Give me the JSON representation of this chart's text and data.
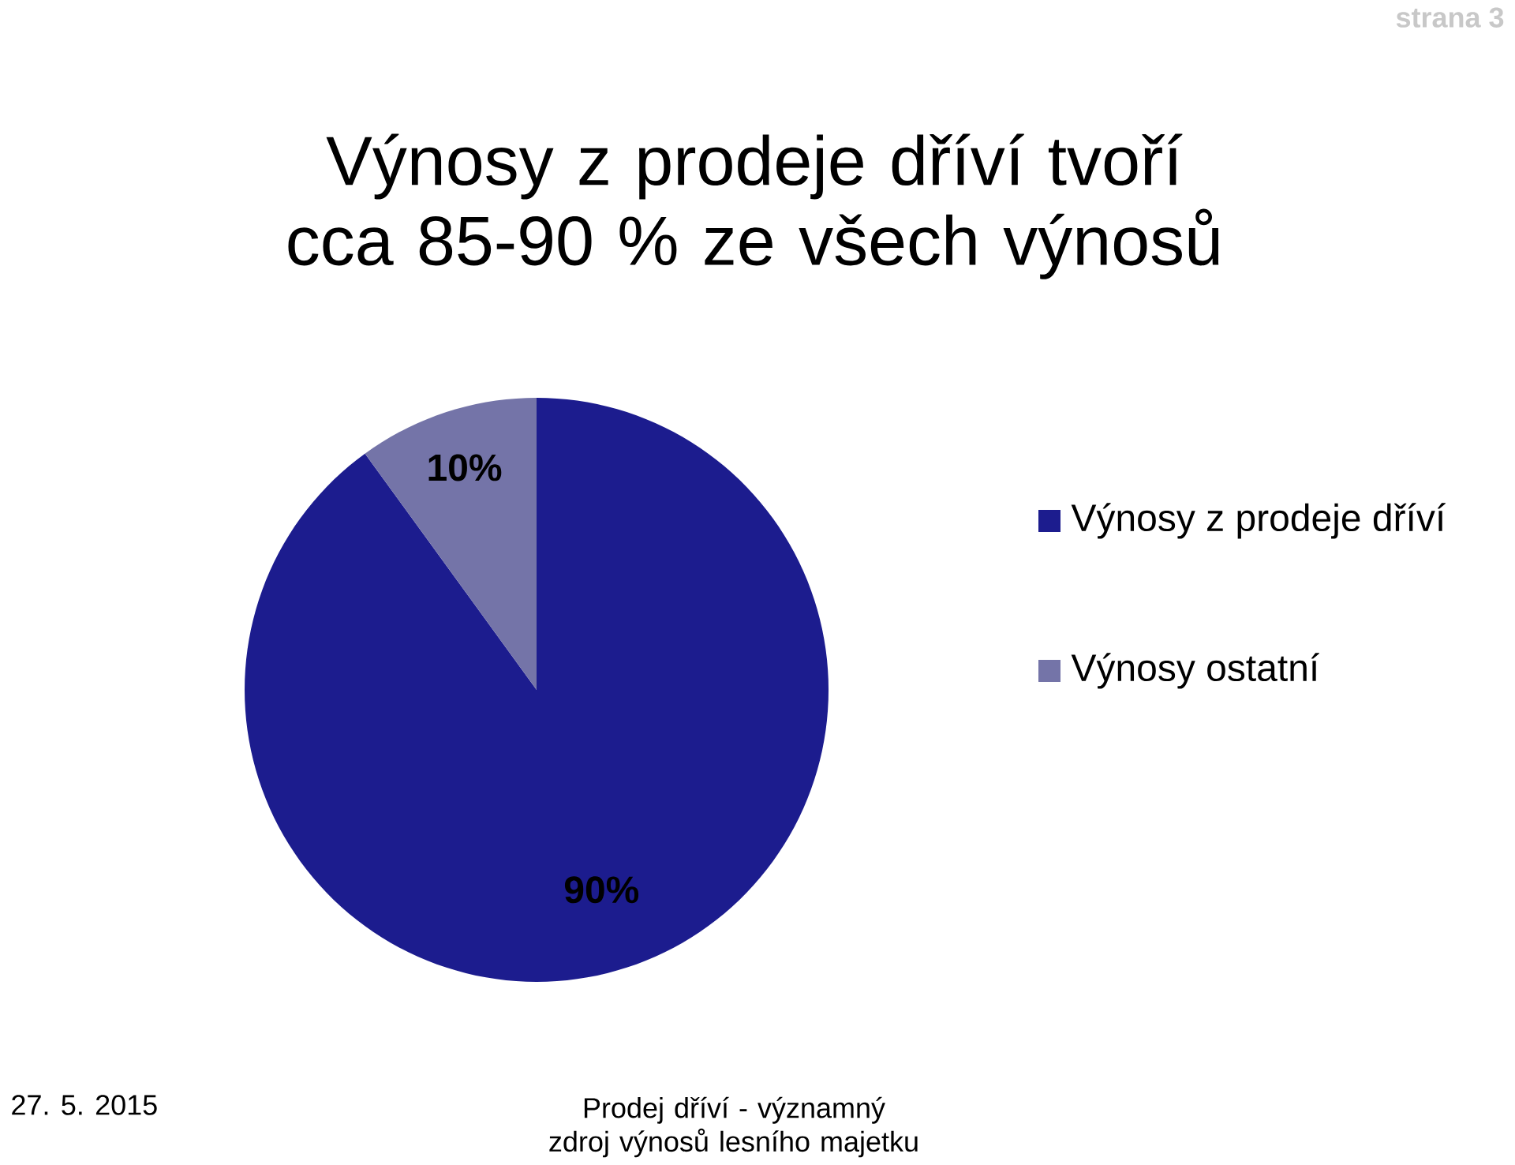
{
  "chart_data": {
    "type": "pie",
    "title": "Výnosy z prodeje dříví tvoří cca 85-90 % ze všech výnosů",
    "categories": [
      "Výnosy z prodeje dříví",
      "Výnosy ostatní"
    ],
    "values": [
      90,
      10
    ],
    "colors": [
      "#1c1c8e",
      "#7474a8"
    ],
    "value_labels": [
      "90%",
      "10%"
    ],
    "legend": "right",
    "annotations": [
      "27. 5. 2015",
      "Prodej dříví - významný zdroj výnosů lesního majetku",
      "strana 3"
    ]
  }
}
